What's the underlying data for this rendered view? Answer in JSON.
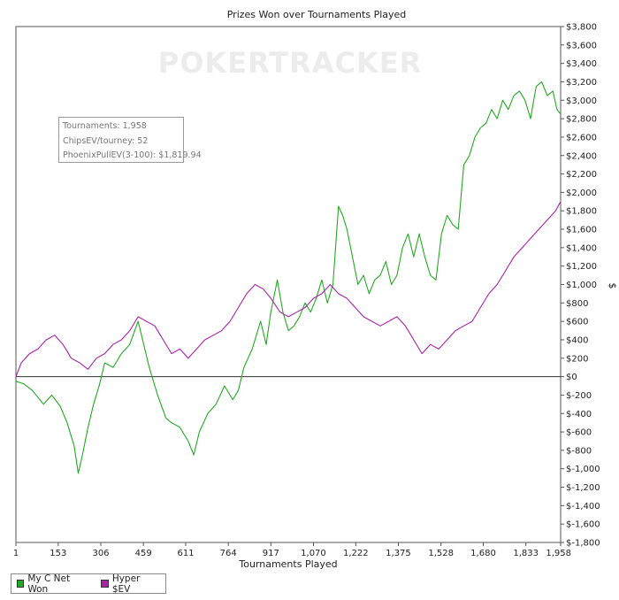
{
  "chart_data": {
    "type": "line",
    "title": "Prizes Won over Tournaments Played",
    "xlabel": "Tournaments Played",
    "ylabel": "$",
    "watermark": "POKERTRACKER",
    "xlim": [
      1,
      1958
    ],
    "ylim": [
      -1800,
      3800
    ],
    "x_ticks": [
      1,
      153,
      306,
      459,
      611,
      764,
      917,
      1070,
      1222,
      1375,
      1528,
      1680,
      1833,
      1958
    ],
    "x_tick_labels": [
      "1",
      "153",
      "306",
      "459",
      "611",
      "764",
      "917",
      "1,070",
      "1,222",
      "1,375",
      "1,528",
      "1,680",
      "1,833",
      "1,958"
    ],
    "y_ticks": [
      -1800,
      -1600,
      -1400,
      -1200,
      -1000,
      -800,
      -600,
      -400,
      -200,
      0,
      200,
      400,
      600,
      800,
      1000,
      1200,
      1400,
      1600,
      1800,
      2000,
      2200,
      2400,
      2600,
      2800,
      3000,
      3200,
      3400,
      3600,
      3800
    ],
    "y_tick_labels": [
      "$-1,800",
      "$-1,600",
      "$-1,400",
      "$-1,200",
      "$-1,000",
      "$-800",
      "$-600",
      "$-400",
      "$-200",
      "$0",
      "$200",
      "$400",
      "$600",
      "$800",
      "$1,000",
      "$1,200",
      "$1,400",
      "$1,600",
      "$1,800",
      "$2,000",
      "$2,200",
      "$2,400",
      "$2,600",
      "$2,800",
      "$3,000",
      "$3,200",
      "$3,400",
      "$3,600",
      "$3,800"
    ],
    "grid": false,
    "legend_position": "bottom-left",
    "series": [
      {
        "name": "My C Net Won",
        "color": "#22aa22",
        "x": [
          1,
          30,
          60,
          100,
          130,
          160,
          185,
          210,
          225,
          240,
          260,
          280,
          300,
          320,
          350,
          380,
          410,
          440,
          460,
          480,
          510,
          540,
          560,
          590,
          620,
          640,
          660,
          690,
          720,
          750,
          780,
          800,
          820,
          850,
          880,
          900,
          917,
          940,
          960,
          980,
          1000,
          1020,
          1040,
          1060,
          1080,
          1100,
          1120,
          1140,
          1160,
          1175,
          1190,
          1210,
          1230,
          1250,
          1270,
          1290,
          1310,
          1330,
          1350,
          1370,
          1390,
          1410,
          1430,
          1450,
          1470,
          1490,
          1510,
          1530,
          1550,
          1570,
          1590,
          1610,
          1630,
          1650,
          1670,
          1690,
          1710,
          1730,
          1750,
          1770,
          1790,
          1810,
          1830,
          1850,
          1870,
          1890,
          1910,
          1930,
          1945,
          1958
        ],
        "values": [
          -50,
          -80,
          -150,
          -300,
          -200,
          -320,
          -500,
          -750,
          -1050,
          -850,
          -550,
          -300,
          -100,
          150,
          100,
          250,
          350,
          600,
          350,
          100,
          -200,
          -450,
          -500,
          -550,
          -700,
          -850,
          -600,
          -400,
          -300,
          -100,
          -250,
          -150,
          100,
          300,
          600,
          350,
          700,
          1050,
          700,
          500,
          550,
          650,
          800,
          700,
          850,
          1050,
          800,
          1000,
          1850,
          1750,
          1600,
          1300,
          1000,
          1100,
          900,
          1050,
          1100,
          1250,
          1000,
          1100,
          1400,
          1550,
          1300,
          1550,
          1300,
          1100,
          1050,
          1550,
          1750,
          1650,
          1600,
          2300,
          2400,
          2600,
          2700,
          2750,
          2900,
          2800,
          3000,
          2900,
          3050,
          3100,
          3000,
          2800,
          3150,
          3200,
          3050,
          3100,
          2900,
          2850
        ]
      },
      {
        "name": "Hyper $EV",
        "color": "#aa22aa",
        "x": [
          1,
          20,
          50,
          80,
          110,
          140,
          170,
          200,
          230,
          260,
          290,
          320,
          350,
          380,
          410,
          440,
          470,
          500,
          530,
          560,
          590,
          620,
          650,
          680,
          710,
          740,
          770,
          800,
          830,
          860,
          890,
          917,
          950,
          980,
          1010,
          1040,
          1070,
          1100,
          1130,
          1160,
          1190,
          1220,
          1250,
          1280,
          1310,
          1340,
          1370,
          1400,
          1430,
          1460,
          1490,
          1520,
          1550,
          1580,
          1610,
          1640,
          1670,
          1700,
          1730,
          1760,
          1790,
          1820,
          1850,
          1880,
          1910,
          1940,
          1958
        ],
        "values": [
          0,
          150,
          250,
          300,
          400,
          450,
          350,
          200,
          150,
          80,
          200,
          250,
          350,
          400,
          500,
          650,
          600,
          550,
          400,
          250,
          300,
          200,
          300,
          400,
          450,
          500,
          600,
          750,
          900,
          1000,
          950,
          850,
          700,
          650,
          700,
          750,
          850,
          900,
          1000,
          900,
          850,
          750,
          650,
          600,
          550,
          600,
          650,
          550,
          400,
          250,
          350,
          300,
          400,
          500,
          550,
          600,
          750,
          900,
          1000,
          1150,
          1300,
          1400,
          1500,
          1600,
          1700,
          1800,
          1900
        ]
      }
    ]
  },
  "info_box": {
    "line1": "Tournaments: 1,958",
    "line2": "ChipsEV/tourney: 52",
    "line3": "PhoenixPullEV(3-100): $1,819.94"
  },
  "legend": {
    "item1_label": "My C Net Won",
    "item2_label": "Hyper $EV"
  }
}
